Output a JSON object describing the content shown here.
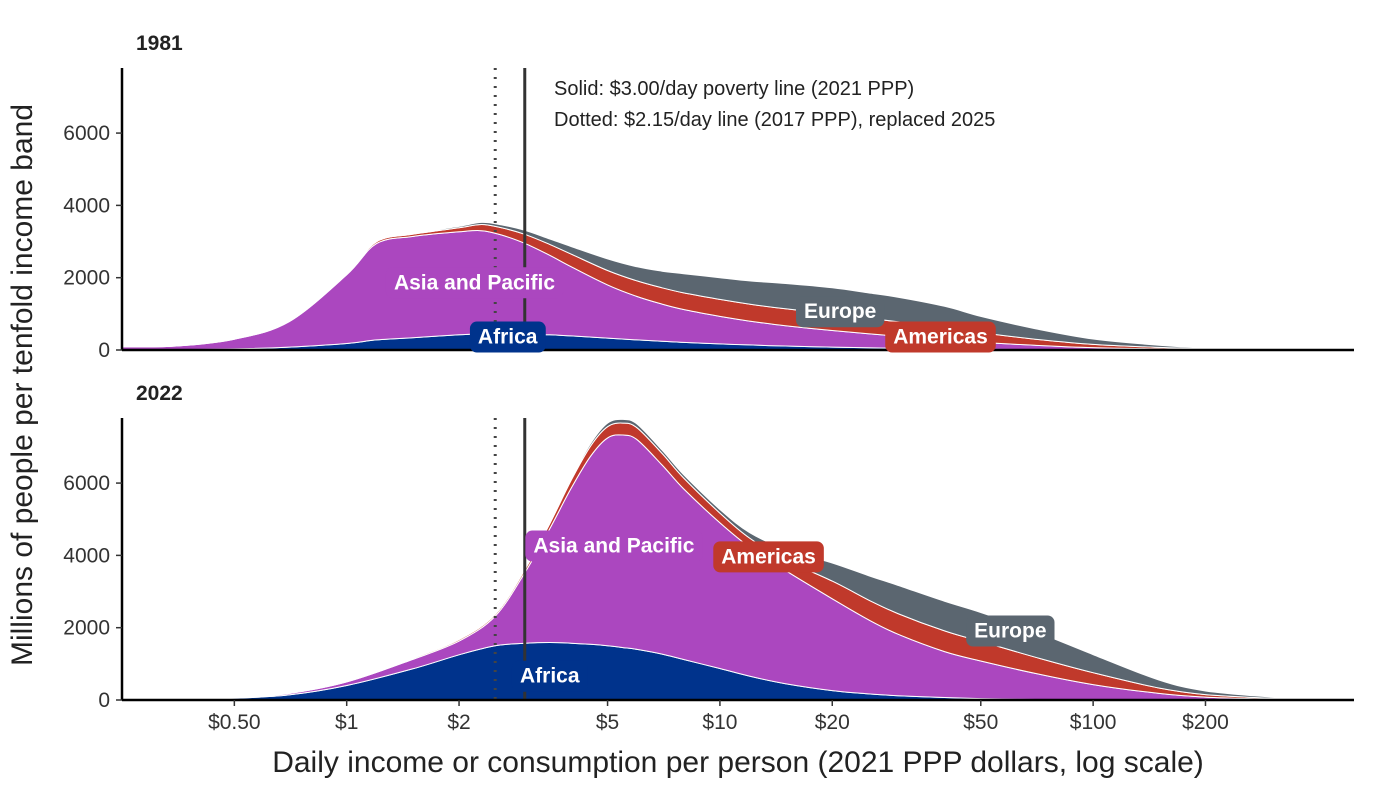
{
  "chart_data": {
    "type": "area",
    "stacked": true,
    "x_scale": "log",
    "xlabel": "Daily income or consumption per person (2021 PPP dollars, log scale)",
    "ylabel": "Millions of people per tenfold income band",
    "xlim": [
      0.25,
      500
    ],
    "ylim": [
      0,
      7800
    ],
    "x_ticks": [
      {
        "value": 0.5,
        "label": "$0.50"
      },
      {
        "value": 1,
        "label": "$1"
      },
      {
        "value": 2,
        "label": "$2"
      },
      {
        "value": 5,
        "label": "$5"
      },
      {
        "value": 10,
        "label": "$10"
      },
      {
        "value": 20,
        "label": "$20"
      },
      {
        "value": 50,
        "label": "$50"
      },
      {
        "value": 100,
        "label": "$100"
      },
      {
        "value": 200,
        "label": "$200"
      }
    ],
    "y_ticks": [
      0,
      2000,
      4000,
      6000
    ],
    "grid": false,
    "poverty_lines": [
      {
        "value": 3.0,
        "style": "solid",
        "color": "#333333"
      },
      {
        "value": 2.5,
        "style": "dotted",
        "color": "#444444"
      }
    ],
    "annotation_lines": [
      "Solid: $3.00/day poverty line (2021 PPP)",
      "Dotted: $2.15/day line (2017 PPP), replaced 2025"
    ],
    "series_colors": {
      "Africa": "#00338c",
      "Asia and Pacific": "#ab47bf",
      "Americas": "#c0392b",
      "Europe": "#5b6670"
    },
    "panels": [
      {
        "title": "1981",
        "x": [
          0.25,
          0.35,
          0.5,
          0.7,
          1,
          1.2,
          1.5,
          2,
          2.3,
          2.6,
          3,
          3.5,
          4,
          5,
          6,
          7,
          8,
          10,
          12,
          15,
          20,
          25,
          30,
          40,
          50,
          70,
          100,
          150,
          200,
          300,
          400
        ],
        "series": [
          {
            "name": "Africa",
            "values": [
              5,
              10,
              30,
              80,
              180,
              280,
              340,
              420,
              450,
              450,
              440,
              420,
              390,
              330,
              280,
              240,
              210,
              170,
              140,
              110,
              80,
              60,
              50,
              30,
              20,
              10,
              5,
              2,
              1,
              0,
              0
            ]
          },
          {
            "name": "Asia and Pacific",
            "values": [
              85,
              100,
              270,
              700,
              1900,
              2660,
              2800,
              2850,
              2850,
              2730,
              2510,
              2200,
              1910,
              1470,
              1200,
              1030,
              910,
              760,
              660,
              560,
              460,
              390,
              330,
              250,
              190,
              120,
              60,
              30,
              15,
              5,
              0
            ]
          },
          {
            "name": "Americas",
            "values": [
              0,
              0,
              10,
              20,
              30,
              50,
              60,
              110,
              170,
              200,
              250,
              300,
              350,
              400,
              430,
              450,
              460,
              470,
              470,
              470,
              460,
              430,
              400,
              340,
              270,
              170,
              90,
              40,
              20,
              5,
              0
            ]
          },
          {
            "name": "Europe",
            "values": [
              0,
              0,
              0,
              0,
              5,
              10,
              20,
              40,
              60,
              80,
              110,
              150,
              210,
              320,
              390,
              460,
              530,
              600,
              640,
              700,
              720,
              700,
              680,
              590,
              450,
              290,
              150,
              60,
              25,
              8,
              0
            ]
          }
        ],
        "labels": [
          {
            "text": "Asia and Pacific",
            "series": "Asia and Pacific",
            "x": 2.2,
            "y": 1900
          },
          {
            "text": "Africa",
            "series": "Africa",
            "x": 2.7,
            "y": 400
          },
          {
            "text": "Europe",
            "series": "Europe",
            "x": 21,
            "y": 1100
          },
          {
            "text": "Americas",
            "series": "Americas",
            "x": 39,
            "y": 400
          }
        ]
      },
      {
        "title": "2022",
        "x": [
          0.25,
          0.35,
          0.5,
          0.7,
          1,
          1.5,
          2,
          2.5,
          3,
          3.5,
          4,
          4.5,
          5,
          5.5,
          6,
          7,
          8,
          10,
          12,
          15,
          20,
          25,
          30,
          40,
          50,
          70,
          100,
          150,
          200,
          300,
          400
        ],
        "series": [
          {
            "name": "Africa",
            "values": [
              0,
              10,
              50,
              140,
              400,
              860,
              1250,
              1500,
              1570,
              1590,
              1570,
              1540,
              1500,
              1450,
              1400,
              1270,
              1120,
              870,
              660,
              450,
              260,
              170,
              120,
              70,
              40,
              15,
              5,
              2,
              0,
              0,
              0
            ]
          },
          {
            "name": "Asia and Pacific",
            "values": [
              0,
              0,
              10,
              40,
              100,
              260,
              380,
              820,
              1950,
              3150,
              4300,
              5200,
              5750,
              5880,
              5800,
              5230,
              4720,
              4030,
              3570,
              3130,
              2540,
              2050,
              1700,
              1270,
              1040,
              720,
              420,
              180,
              80,
              25,
              0
            ]
          },
          {
            "name": "Americas",
            "values": [
              0,
              0,
              0,
              10,
              20,
              30,
              40,
              50,
              80,
              140,
              220,
              280,
              310,
              330,
              330,
              320,
              300,
              270,
              250,
              300,
              490,
              550,
              570,
              570,
              540,
              450,
              330,
              150,
              70,
              25,
              0
            ]
          },
          {
            "name": "Europe",
            "values": [
              0,
              0,
              0,
              0,
              5,
              10,
              10,
              20,
              30,
              40,
              50,
              70,
              100,
              100,
              100,
              90,
              90,
              100,
              150,
              290,
              500,
              670,
              780,
              820,
              800,
              710,
              500,
              220,
              100,
              30,
              0
            ]
          }
        ],
        "labels": [
          {
            "text": "Asia and Pacific",
            "series": "Asia and Pacific",
            "x": 5.2,
            "y": 4300
          },
          {
            "text": "Africa",
            "series": "Africa",
            "x": 3.5,
            "y": 700
          },
          {
            "text": "Americas",
            "series": "Americas",
            "x": 13.5,
            "y": 4000
          },
          {
            "text": "Europe",
            "series": "Europe",
            "x": 60,
            "y": 1950
          }
        ]
      }
    ]
  }
}
